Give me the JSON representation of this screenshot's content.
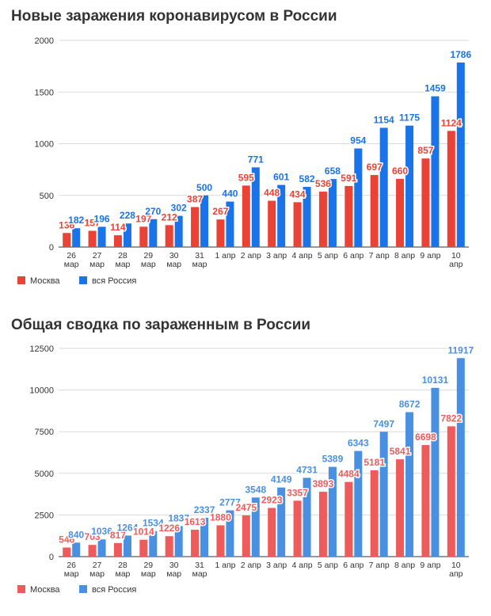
{
  "chart_data": [
    {
      "type": "bar",
      "title": "Новые заражения коронавирусом в России",
      "categories": [
        "26 мар",
        "27 мар",
        "28 мар",
        "29 мар",
        "30 мар",
        "31 мар",
        "1 апр",
        "2 апр",
        "3 апр",
        "4 апр",
        "5 апр",
        "6 апр",
        "7 апр",
        "8 апр",
        "9 апр",
        "10 апр"
      ],
      "series": [
        {
          "name": "Москва",
          "color": "#ea4335",
          "values": [
            136,
            157,
            114,
            197,
            212,
            387,
            267,
            595,
            448,
            434,
            536,
            591,
            697,
            660,
            857,
            1124
          ]
        },
        {
          "name": "вся Россия",
          "color": "#1a73e8",
          "values": [
            182,
            196,
            228,
            270,
            302,
            500,
            440,
            771,
            601,
            582,
            658,
            954,
            1154,
            1175,
            1459,
            1786
          ]
        }
      ],
      "yticks": [
        0,
        500,
        1000,
        1500,
        2000
      ],
      "ylim": [
        0,
        2000
      ],
      "legend": "bottom-left",
      "grid": true
    },
    {
      "type": "bar",
      "title": "Общая сводка по зараженным в России",
      "categories": [
        "26 мар",
        "27 мар",
        "28 мар",
        "29 мар",
        "30 мар",
        "31 мар",
        "1 апр",
        "2 апр",
        "3 апр",
        "4 апр",
        "5 апр",
        "6 апр",
        "7 апр",
        "8 апр",
        "9 апр",
        "10 апр"
      ],
      "series": [
        {
          "name": "Москва",
          "color": "#ef5b5b",
          "values": [
            546,
            703,
            817,
            1014,
            1226,
            1613,
            1880,
            2475,
            2923,
            3357,
            3893,
            4484,
            5181,
            5841,
            6698,
            7822
          ]
        },
        {
          "name": "вся Россия",
          "color": "#4a90e2",
          "values": [
            840,
            1036,
            1264,
            1534,
            1837,
            2337,
            2777,
            3548,
            4149,
            4731,
            5389,
            6343,
            7497,
            8672,
            10131,
            11917
          ]
        }
      ],
      "yticks": [
        0,
        2500,
        5000,
        7500,
        10000,
        12500
      ],
      "ylim": [
        0,
        12500
      ],
      "legend": "bottom-left",
      "grid": true
    }
  ]
}
